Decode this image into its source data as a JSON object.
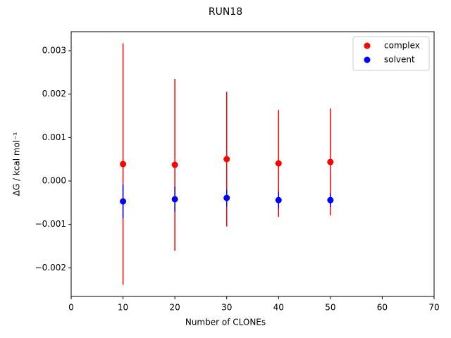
{
  "chart_data": {
    "type": "errorbar-scatter",
    "title": "RUN18",
    "xlabel": "Number of CLONEs",
    "ylabel": "ΔG / kcal mol⁻¹",
    "x": [
      10,
      20,
      30,
      40,
      50
    ],
    "series": [
      {
        "name": "complex",
        "color": "#ff0000",
        "values": [
          0.000389,
          0.000373,
          0.000503,
          0.000405,
          0.000438
        ],
        "errors": [
          0.00278,
          0.00198,
          0.00155,
          0.00123,
          0.00123
        ]
      },
      {
        "name": "solvent",
        "color": "#0000ff",
        "values": [
          -0.00047,
          -0.00042,
          -0.00039,
          -0.00044,
          -0.00044
        ],
        "errors": [
          0.00039,
          0.00029,
          0.0002,
          0.0002,
          0.00016
        ]
      }
    ],
    "xlim": [
      0,
      70
    ],
    "xticks": [
      0,
      10,
      20,
      30,
      40,
      50,
      60,
      70
    ],
    "ylim": [
      -0.002659,
      0.003438
    ],
    "yticks": [
      {
        "value": -0.002,
        "label": "−0.002"
      },
      {
        "value": -0.001,
        "label": "−0.001"
      },
      {
        "value": 0,
        "label": "0.000"
      },
      {
        "value": 0.001,
        "label": "0.001"
      },
      {
        "value": 0.002,
        "label": "0.002"
      },
      {
        "value": 0.003,
        "label": "0.003"
      }
    ],
    "legend": "upper right",
    "grid": false
  }
}
